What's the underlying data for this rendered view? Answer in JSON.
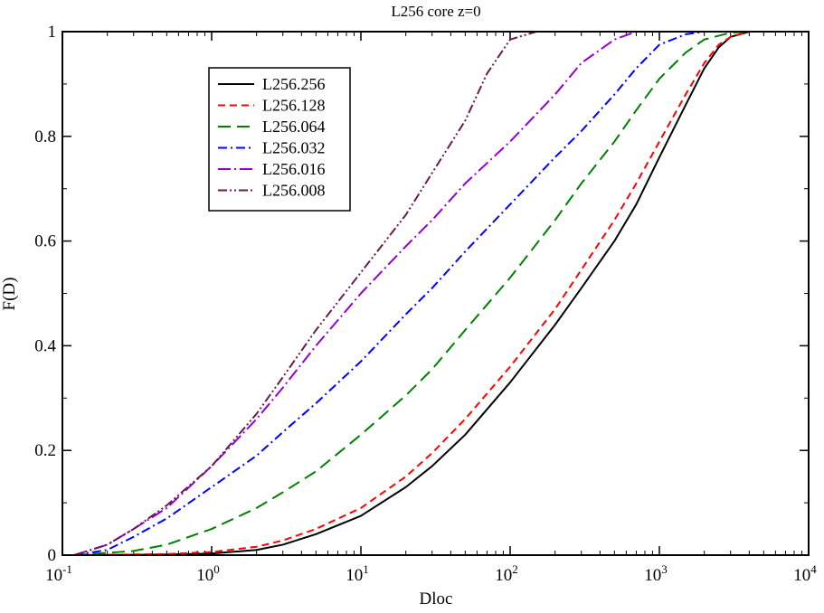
{
  "chart_data": {
    "type": "line",
    "title": "L256 core z=0",
    "xlabel": "Dloc",
    "ylabel": "F(D)",
    "xscale": "log",
    "xlim": [
      0.1,
      10000
    ],
    "ylim": [
      0,
      1
    ],
    "x_ticks": [
      {
        "value": 0.1,
        "base": "10",
        "exp": "-1"
      },
      {
        "value": 1,
        "base": "10",
        "exp": "0"
      },
      {
        "value": 10,
        "base": "10",
        "exp": "1"
      },
      {
        "value": 100,
        "base": "10",
        "exp": "2"
      },
      {
        "value": 1000,
        "base": "10",
        "exp": "3"
      },
      {
        "value": 10000,
        "base": "10",
        "exp": "4"
      }
    ],
    "y_ticks": [
      {
        "value": 0,
        "label": "0"
      },
      {
        "value": 0.2,
        "label": "0.2"
      },
      {
        "value": 0.4,
        "label": "0.4"
      },
      {
        "value": 0.6,
        "label": "0.6"
      },
      {
        "value": 0.8,
        "label": "0.8"
      },
      {
        "value": 1,
        "label": "1"
      }
    ],
    "legend_position": "top-left",
    "series": [
      {
        "name": "L256.256",
        "color": "#000000",
        "dash": "solid",
        "points": [
          [
            0.12,
            0
          ],
          [
            0.5,
            0.001
          ],
          [
            1,
            0.003
          ],
          [
            2,
            0.01
          ],
          [
            3,
            0.02
          ],
          [
            5,
            0.04
          ],
          [
            10,
            0.075
          ],
          [
            20,
            0.13
          ],
          [
            30,
            0.17
          ],
          [
            50,
            0.23
          ],
          [
            100,
            0.33
          ],
          [
            200,
            0.44
          ],
          [
            300,
            0.51
          ],
          [
            500,
            0.6
          ],
          [
            700,
            0.67
          ],
          [
            1000,
            0.76
          ],
          [
            1500,
            0.86
          ],
          [
            2000,
            0.93
          ],
          [
            2500,
            0.97
          ],
          [
            3000,
            0.99
          ],
          [
            4000,
            1.0
          ],
          [
            10000,
            1.0
          ]
        ]
      },
      {
        "name": "L256.128",
        "color": "#ff0000",
        "dash": "dash",
        "points": [
          [
            0.12,
            0
          ],
          [
            0.5,
            0.002
          ],
          [
            1,
            0.006
          ],
          [
            2,
            0.016
          ],
          [
            3,
            0.028
          ],
          [
            5,
            0.05
          ],
          [
            10,
            0.09
          ],
          [
            20,
            0.15
          ],
          [
            30,
            0.195
          ],
          [
            50,
            0.26
          ],
          [
            100,
            0.36
          ],
          [
            200,
            0.47
          ],
          [
            300,
            0.545
          ],
          [
            500,
            0.64
          ],
          [
            700,
            0.71
          ],
          [
            1000,
            0.79
          ],
          [
            1500,
            0.88
          ],
          [
            2000,
            0.94
          ],
          [
            2500,
            0.975
          ],
          [
            3000,
            0.99
          ],
          [
            4000,
            1.0
          ],
          [
            10000,
            1.0
          ]
        ]
      },
      {
        "name": "L256.064",
        "color": "#008000",
        "dash": "longdash",
        "points": [
          [
            0.12,
            0
          ],
          [
            0.3,
            0.008
          ],
          [
            0.5,
            0.02
          ],
          [
            1,
            0.05
          ],
          [
            2,
            0.09
          ],
          [
            3,
            0.12
          ],
          [
            5,
            0.16
          ],
          [
            10,
            0.23
          ],
          [
            20,
            0.305
          ],
          [
            30,
            0.355
          ],
          [
            50,
            0.43
          ],
          [
            100,
            0.53
          ],
          [
            200,
            0.64
          ],
          [
            300,
            0.71
          ],
          [
            500,
            0.79
          ],
          [
            700,
            0.85
          ],
          [
            1000,
            0.91
          ],
          [
            1500,
            0.96
          ],
          [
            2000,
            0.985
          ],
          [
            3000,
            0.998
          ],
          [
            4000,
            1.0
          ],
          [
            10000,
            1.0
          ]
        ]
      },
      {
        "name": "L256.032",
        "color": "#0000ff",
        "dash": "dashdot",
        "points": [
          [
            0.12,
            0
          ],
          [
            0.2,
            0.01
          ],
          [
            0.3,
            0.035
          ],
          [
            0.5,
            0.07
          ],
          [
            1,
            0.13
          ],
          [
            2,
            0.19
          ],
          [
            3,
            0.235
          ],
          [
            5,
            0.29
          ],
          [
            10,
            0.37
          ],
          [
            20,
            0.46
          ],
          [
            30,
            0.51
          ],
          [
            50,
            0.58
          ],
          [
            100,
            0.67
          ],
          [
            200,
            0.76
          ],
          [
            300,
            0.81
          ],
          [
            500,
            0.88
          ],
          [
            700,
            0.93
          ],
          [
            1000,
            0.975
          ],
          [
            1500,
            0.995
          ],
          [
            2000,
            1.0
          ],
          [
            10000,
            1.0
          ]
        ]
      },
      {
        "name": "L256.016",
        "color": "#9400d3",
        "dash": "longdashdot",
        "points": [
          [
            0.12,
            0
          ],
          [
            0.2,
            0.02
          ],
          [
            0.3,
            0.05
          ],
          [
            0.5,
            0.09
          ],
          [
            1,
            0.17
          ],
          [
            2,
            0.26
          ],
          [
            3,
            0.32
          ],
          [
            5,
            0.4
          ],
          [
            10,
            0.5
          ],
          [
            20,
            0.59
          ],
          [
            30,
            0.64
          ],
          [
            50,
            0.71
          ],
          [
            100,
            0.79
          ],
          [
            200,
            0.88
          ],
          [
            300,
            0.94
          ],
          [
            500,
            0.985
          ],
          [
            700,
            1.0
          ],
          [
            10000,
            1.0
          ]
        ]
      },
      {
        "name": "L256.008",
        "color": "#6b1a4c",
        "dash": "dashdotdot",
        "points": [
          [
            0.12,
            0
          ],
          [
            0.2,
            0.02
          ],
          [
            0.3,
            0.05
          ],
          [
            0.5,
            0.095
          ],
          [
            1,
            0.17
          ],
          [
            2,
            0.27
          ],
          [
            3,
            0.34
          ],
          [
            5,
            0.43
          ],
          [
            10,
            0.54
          ],
          [
            20,
            0.65
          ],
          [
            30,
            0.73
          ],
          [
            50,
            0.83
          ],
          [
            70,
            0.92
          ],
          [
            100,
            0.985
          ],
          [
            150,
            1.0
          ],
          [
            10000,
            1.0
          ]
        ]
      }
    ]
  }
}
